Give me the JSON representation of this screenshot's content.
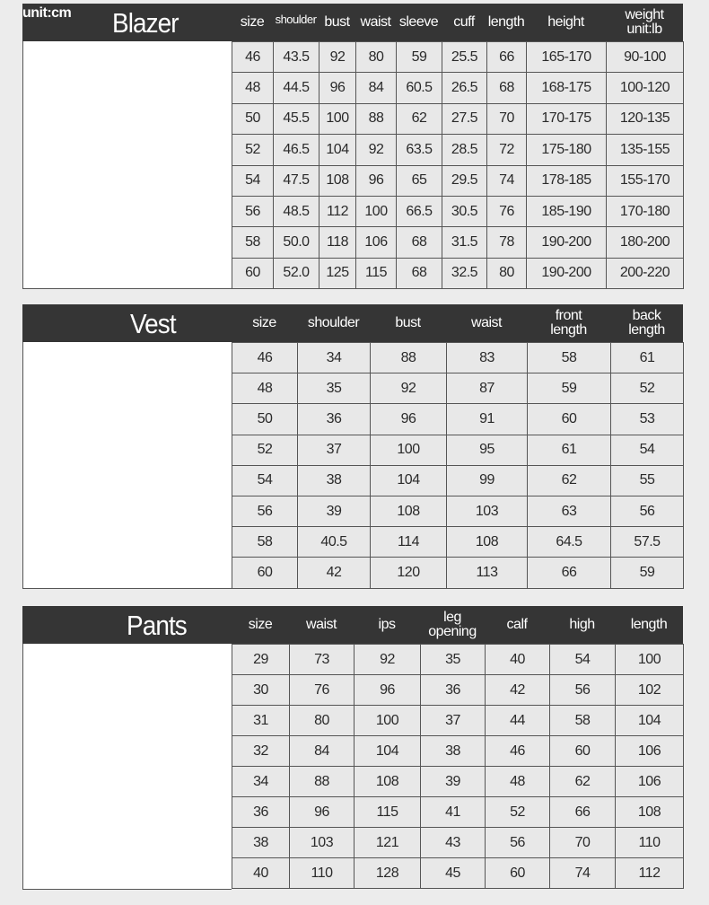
{
  "blazer": {
    "unit": "unit:cm",
    "title": "Blazer",
    "headers": [
      "size",
      "shoulder",
      "bust",
      "waist",
      "sleeve",
      "cuff",
      "length",
      "height",
      "weight\nunit:lb"
    ],
    "rows": [
      [
        "46",
        "43.5",
        "92",
        "80",
        "59",
        "25.5",
        "66",
        "165-170",
        "90-100"
      ],
      [
        "48",
        "44.5",
        "96",
        "84",
        "60.5",
        "26.5",
        "68",
        "168-175",
        "100-120"
      ],
      [
        "50",
        "45.5",
        "100",
        "88",
        "62",
        "27.5",
        "70",
        "170-175",
        "120-135"
      ],
      [
        "52",
        "46.5",
        "104",
        "92",
        "63.5",
        "28.5",
        "72",
        "175-180",
        "135-155"
      ],
      [
        "54",
        "47.5",
        "108",
        "96",
        "65",
        "29.5",
        "74",
        "178-185",
        "155-170"
      ],
      [
        "56",
        "48.5",
        "112",
        "100",
        "66.5",
        "30.5",
        "76",
        "185-190",
        "170-180"
      ],
      [
        "58",
        "50.0",
        "118",
        "106",
        "68",
        "31.5",
        "78",
        "190-200",
        "180-200"
      ],
      [
        "60",
        "52.0",
        "125",
        "115",
        "68",
        "32.5",
        "80",
        "190-200",
        "200-220"
      ]
    ]
  },
  "vest": {
    "title": "Vest",
    "headers": [
      "size",
      "shoulder",
      "bust",
      "waist",
      "front\nlength",
      "back\nlength"
    ],
    "rows": [
      [
        "46",
        "34",
        "88",
        "83",
        "58",
        "61"
      ],
      [
        "48",
        "35",
        "92",
        "87",
        "59",
        "52"
      ],
      [
        "50",
        "36",
        "96",
        "91",
        "60",
        "53"
      ],
      [
        "52",
        "37",
        "100",
        "95",
        "61",
        "54"
      ],
      [
        "54",
        "38",
        "104",
        "99",
        "62",
        "55"
      ],
      [
        "56",
        "39",
        "108",
        "103",
        "63",
        "56"
      ],
      [
        "58",
        "40.5",
        "114",
        "108",
        "64.5",
        "57.5"
      ],
      [
        "60",
        "42",
        "120",
        "113",
        "66",
        "59"
      ]
    ]
  },
  "pants": {
    "title": "Pants",
    "headers": [
      "size",
      "waist",
      "ips",
      "leg\nopening",
      "calf",
      "high",
      "length"
    ],
    "rows": [
      [
        "29",
        "73",
        "92",
        "35",
        "40",
        "54",
        "100"
      ],
      [
        "30",
        "76",
        "96",
        "36",
        "42",
        "56",
        "102"
      ],
      [
        "31",
        "80",
        "100",
        "37",
        "44",
        "58",
        "104"
      ],
      [
        "32",
        "84",
        "104",
        "38",
        "46",
        "60",
        "106"
      ],
      [
        "34",
        "88",
        "108",
        "39",
        "48",
        "62",
        "106"
      ],
      [
        "36",
        "96",
        "115",
        "41",
        "52",
        "66",
        "108"
      ],
      [
        "38",
        "103",
        "121",
        "43",
        "56",
        "70",
        "110"
      ],
      [
        "40",
        "110",
        "128",
        "45",
        "60",
        "74",
        "112"
      ]
    ]
  }
}
